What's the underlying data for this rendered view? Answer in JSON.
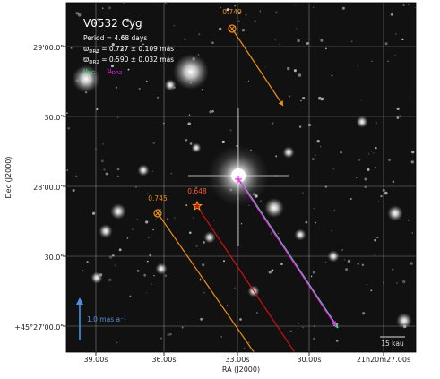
{
  "chart_data": {
    "type": "sky-image",
    "title": "V0532 Cyg",
    "info": {
      "period": "Period =   4.68 days",
      "plx_drp_prefix": "ϖ",
      "plx_drp_sub": "DR3",
      "plx_drp_rest": " = 0.727 ± 0.109 mas",
      "plx_dr2_prefix": "ϖ",
      "plx_dr2_sub": "DR2",
      "plx_dr2_rest": " = 0.590 ± 0.032 mas"
    },
    "legend": [
      {
        "mu": "μ",
        "sub": "HG",
        "color": "#32e67f"
      },
      {
        "mu": "μ",
        "sub": "DR2",
        "color": "#ff1aff"
      }
    ],
    "xlabel": "RA (J2000)",
    "ylabel": "Dec (J2000)",
    "x_ticks": [
      "39.00s",
      "36.00s",
      "33.00s",
      "30.00s",
      "21h20m27.00s"
    ],
    "y_ticks": [
      "29'00.0\"",
      "30.0\"",
      "28'00.0\"",
      "30.0\"",
      "+45°27'00.0\""
    ],
    "scale_arrow_label": "1.0 mas a⁻¹",
    "scale_bar_label": "15 kau",
    "star_values": [
      "0.749",
      "0.745",
      "0.648"
    ],
    "colors": {
      "arrow_orange": "#f0900c",
      "arrow_red": "#d01010",
      "mu_hg": "#32e67f",
      "mu_dr2": "#ff1aff",
      "scale_arrow": "#4f8fe0",
      "label_orange": "#f0900c",
      "label_red": "#ff5a1a"
    }
  }
}
